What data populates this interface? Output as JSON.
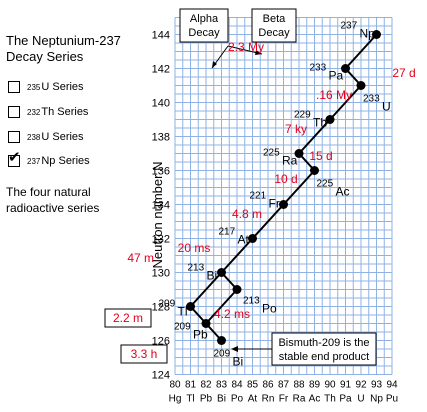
{
  "panel": {
    "title_line1": "The Neptunium-237",
    "title_line2": "Decay Series",
    "series_options": [
      {
        "mass": "235",
        "element": "U Series",
        "checked": false
      },
      {
        "mass": "232",
        "element": "Th Series",
        "checked": false
      },
      {
        "mass": "238",
        "element": "U Series",
        "checked": false
      },
      {
        "mass": "237",
        "element": "Np Series",
        "checked": true
      }
    ],
    "caption_line1": "The four natural",
    "caption_line2": "radioactive series"
  },
  "legend": {
    "alpha": [
      "Alpha",
      "Decay"
    ],
    "beta": [
      "Beta",
      "Decay"
    ]
  },
  "note": [
    "Bismuth-209 is the",
    "stable end product"
  ],
  "chart_data": {
    "type": "scatter",
    "ylabel": "Neutron number N",
    "xlim": [
      80,
      94
    ],
    "ylim": [
      124,
      145
    ],
    "y_ticks": [
      124,
      126,
      128,
      130,
      132,
      134,
      136,
      138,
      140,
      142,
      144
    ],
    "x_ticks": [
      {
        "z": 80,
        "symbol": "Hg"
      },
      {
        "z": 81,
        "symbol": "Tl"
      },
      {
        "z": 82,
        "symbol": "Pb"
      },
      {
        "z": 83,
        "symbol": "Bi"
      },
      {
        "z": 84,
        "symbol": "Po"
      },
      {
        "z": 85,
        "symbol": "At"
      },
      {
        "z": 86,
        "symbol": "Rn"
      },
      {
        "z": 87,
        "symbol": "Fr"
      },
      {
        "z": 88,
        "symbol": "Ra"
      },
      {
        "z": 89,
        "symbol": "Ac"
      },
      {
        "z": 90,
        "symbol": "Th"
      },
      {
        "z": 91,
        "symbol": "Pa"
      },
      {
        "z": 92,
        "symbol": "U"
      },
      {
        "z": 93,
        "symbol": "Np"
      },
      {
        "z": 94,
        "symbol": "Pu"
      }
    ],
    "grid": true,
    "nuclides": [
      {
        "mass": "237",
        "symbol": "Np",
        "z": 93,
        "n": 144
      },
      {
        "mass": "233",
        "symbol": "Pa",
        "z": 91,
        "n": 142
      },
      {
        "mass": "233",
        "symbol": "U",
        "z": 92,
        "n": 141
      },
      {
        "mass": "229",
        "symbol": "Th",
        "z": 90,
        "n": 139
      },
      {
        "mass": "225",
        "symbol": "Ra",
        "z": 88,
        "n": 137
      },
      {
        "mass": "225",
        "symbol": "Ac",
        "z": 89,
        "n": 136
      },
      {
        "mass": "221",
        "symbol": "Fr",
        "z": 87,
        "n": 134
      },
      {
        "mass": "217",
        "symbol": "At",
        "z": 85,
        "n": 132
      },
      {
        "mass": "213",
        "symbol": "Bi",
        "z": 83,
        "n": 130
      },
      {
        "mass": "213",
        "symbol": "Po",
        "z": 84,
        "n": 129
      },
      {
        "mass": "209",
        "symbol": "Tl",
        "z": 81,
        "n": 128
      },
      {
        "mass": "209",
        "symbol": "Pb",
        "z": 82,
        "n": 127
      },
      {
        "mass": "209",
        "symbol": "Bi",
        "z": 83,
        "n": 126
      }
    ],
    "decays": [
      {
        "from": 0,
        "to": 1,
        "half_life": "2.3 My"
      },
      {
        "from": 1,
        "to": 2,
        "half_life": "27 d"
      },
      {
        "from": 2,
        "to": 3,
        "half_life": ".16 My"
      },
      {
        "from": 3,
        "to": 4,
        "half_life": "7 ky"
      },
      {
        "from": 4,
        "to": 5,
        "half_life": "15 d"
      },
      {
        "from": 5,
        "to": 6,
        "half_life": "10 d"
      },
      {
        "from": 6,
        "to": 7,
        "half_life": "4.8 m"
      },
      {
        "from": 7,
        "to": 8,
        "half_life": "20 ms"
      },
      {
        "from": 8,
        "to": 9,
        "half_life": "47 m"
      },
      {
        "from": 8,
        "to": 10,
        "half_life": ""
      },
      {
        "from": 9,
        "to": 11,
        "half_life": "4.2 ms"
      },
      {
        "from": 10,
        "to": 11,
        "half_life": "2.2 m"
      },
      {
        "from": 11,
        "to": 12,
        "half_life": "3.3 h"
      }
    ],
    "colors": {
      "grid": "#8fb3e6",
      "half_life": "#e3001b",
      "line": "#000000"
    }
  }
}
